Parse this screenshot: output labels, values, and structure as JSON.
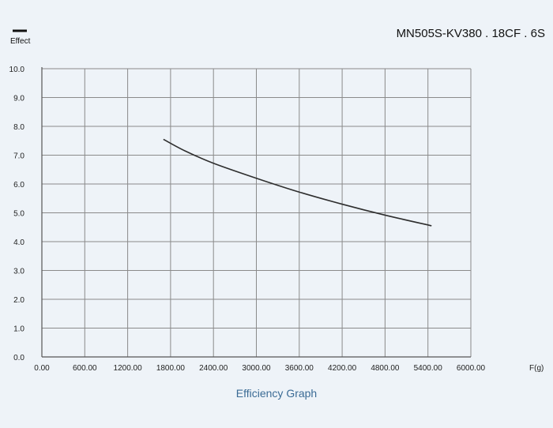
{
  "chart_data": {
    "type": "line",
    "title": "MN505S-KV380 . 18CF . 6S",
    "subtitle": "Efficiency Graph",
    "xlabel": "F(g)",
    "ylabel": "",
    "legend": {
      "label": "Effect",
      "placement": "top-left"
    },
    "xlim": [
      0,
      6000
    ],
    "ylim": [
      0,
      10
    ],
    "xticks": [
      "0.00",
      "600.00",
      "1200.00",
      "1800.00",
      "2400.00",
      "3000.00",
      "3600.00",
      "4200.00",
      "4800.00",
      "5400.00",
      "6000.00"
    ],
    "yticks": [
      "0.0",
      "1.0",
      "2.0",
      "3.0",
      "4.0",
      "5.0",
      "6.0",
      "7.0",
      "8.0",
      "9.0",
      "10.0"
    ],
    "grid": true,
    "series": [
      {
        "name": "Effect",
        "color": "#2e2e2e",
        "x": [
          1700,
          2000,
          2400,
          3000,
          3600,
          4200,
          4800,
          5450
        ],
        "y": [
          7.55,
          7.15,
          6.72,
          6.2,
          5.72,
          5.3,
          4.92,
          4.55
        ]
      }
    ]
  }
}
